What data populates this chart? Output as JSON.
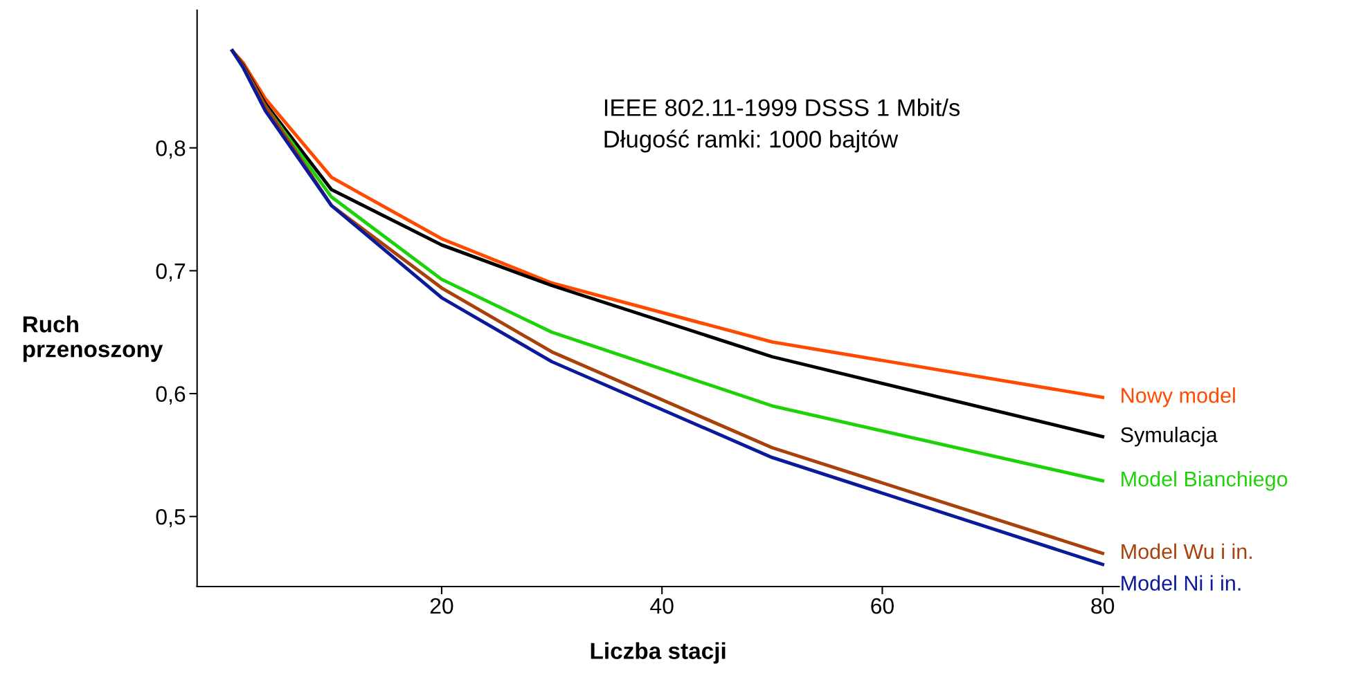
{
  "chart_data": {
    "type": "line",
    "xlabel": "Liczba stacji",
    "ylabel": "Ruch\nprzenoszony",
    "annotations": [
      "IEEE 802.11-1999 DSSS 1 Mbit/s\nDługość ramki: 1000 bajtów"
    ],
    "x": [
      1,
      2,
      4,
      10,
      20,
      30,
      50,
      80
    ],
    "series": [
      {
        "name": "Nowy model",
        "color": "#ff4a00",
        "values": [
          0.879,
          0.869,
          0.84,
          0.776,
          0.726,
          0.69,
          0.642,
          0.597
        ]
      },
      {
        "name": "Symulacja",
        "color": "#000000",
        "values": [
          0.879,
          0.867,
          0.836,
          0.766,
          0.721,
          0.688,
          0.63,
          0.565
        ]
      },
      {
        "name": "Model Bianchiego",
        "color": "#1ed20a",
        "values": [
          0.879,
          0.866,
          0.834,
          0.76,
          0.693,
          0.65,
          0.59,
          0.529
        ]
      },
      {
        "name": "Model Wu i in.",
        "color": "#a8420a",
        "values": [
          0.879,
          0.866,
          0.834,
          0.753,
          0.686,
          0.634,
          0.556,
          0.47
        ]
      },
      {
        "name": "Model Ni i in.",
        "color": "#0a1a9a",
        "values": [
          0.879,
          0.865,
          0.83,
          0.753,
          0.678,
          0.626,
          0.548,
          0.461
        ]
      }
    ],
    "xlim": [
      -2.2,
      81.5
    ],
    "ylim": [
      0.443,
      0.912
    ],
    "xticks": [
      20,
      40,
      60,
      80
    ],
    "yticks": [
      {
        "value": 0.5,
        "label": "0,5"
      },
      {
        "value": 0.6,
        "label": "0,6"
      },
      {
        "value": 0.7,
        "label": "0,7"
      },
      {
        "value": 0.8,
        "label": "0,8"
      }
    ],
    "grid": false,
    "legend": false,
    "marker": "none",
    "line_style": "solid"
  }
}
